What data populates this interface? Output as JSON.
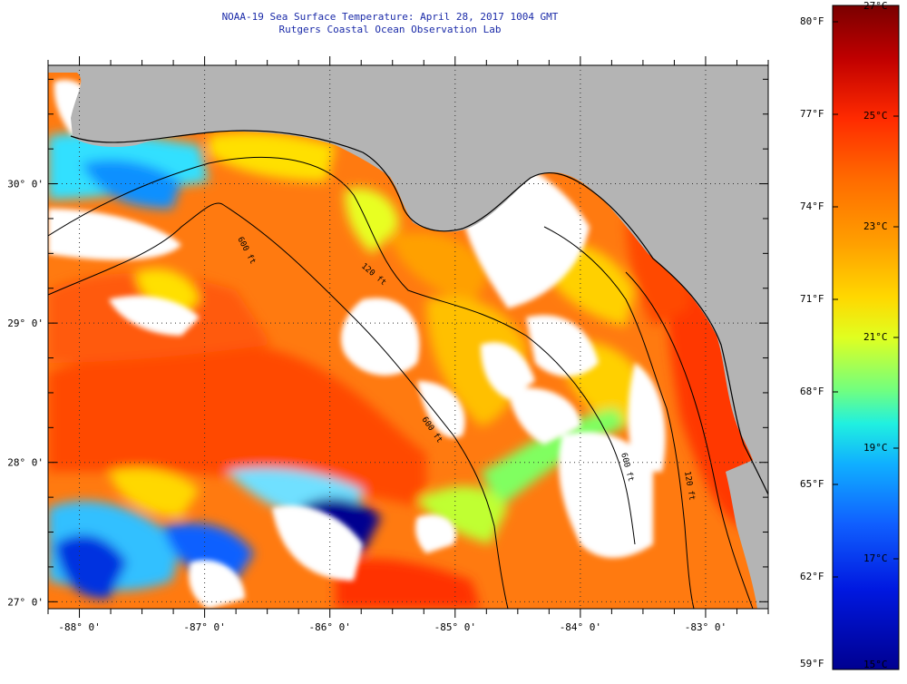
{
  "header": {
    "title": "NOAA-19 Sea Surface Temperature:  April 28, 2017 1004 GMT",
    "subtitle": "Rutgers Coastal Ocean Observation Lab"
  },
  "map": {
    "lon_range": [
      -88.25,
      -82.5
    ],
    "lat_range": [
      26.95,
      30.85
    ],
    "lat_labels": [
      "27° 0'",
      "28° 0'",
      "29° 0'",
      "30° 0'"
    ],
    "lon_labels": [
      "-88° 0'",
      "-87° 0'",
      "-86° 0'",
      "-85° 0'",
      "-84° 0'",
      "-83° 0'"
    ],
    "contour_labels": [
      "600 ft",
      "120 ft",
      "600 ft",
      "600 ft",
      "120 ft"
    ],
    "land_color": "#b4b4b4",
    "no_data_color": "#ffffff"
  },
  "colorbar": {
    "fahrenheit_labels": [
      "80°F",
      "77°F",
      "74°F",
      "71°F",
      "68°F",
      "65°F",
      "62°F",
      "59°F"
    ],
    "celsius_labels": [
      "27°C",
      "25°C",
      "23°C",
      "21°C",
      "19°C",
      "17°C",
      "15°C"
    ],
    "colors": [
      "#7a0000",
      "#c00000",
      "#ff2a00",
      "#ff6a00",
      "#ffa000",
      "#ffd800",
      "#e0ff20",
      "#70ff80",
      "#20f0e0",
      "#10b0ff",
      "#1060ff",
      "#0018e0",
      "#000090"
    ]
  }
}
